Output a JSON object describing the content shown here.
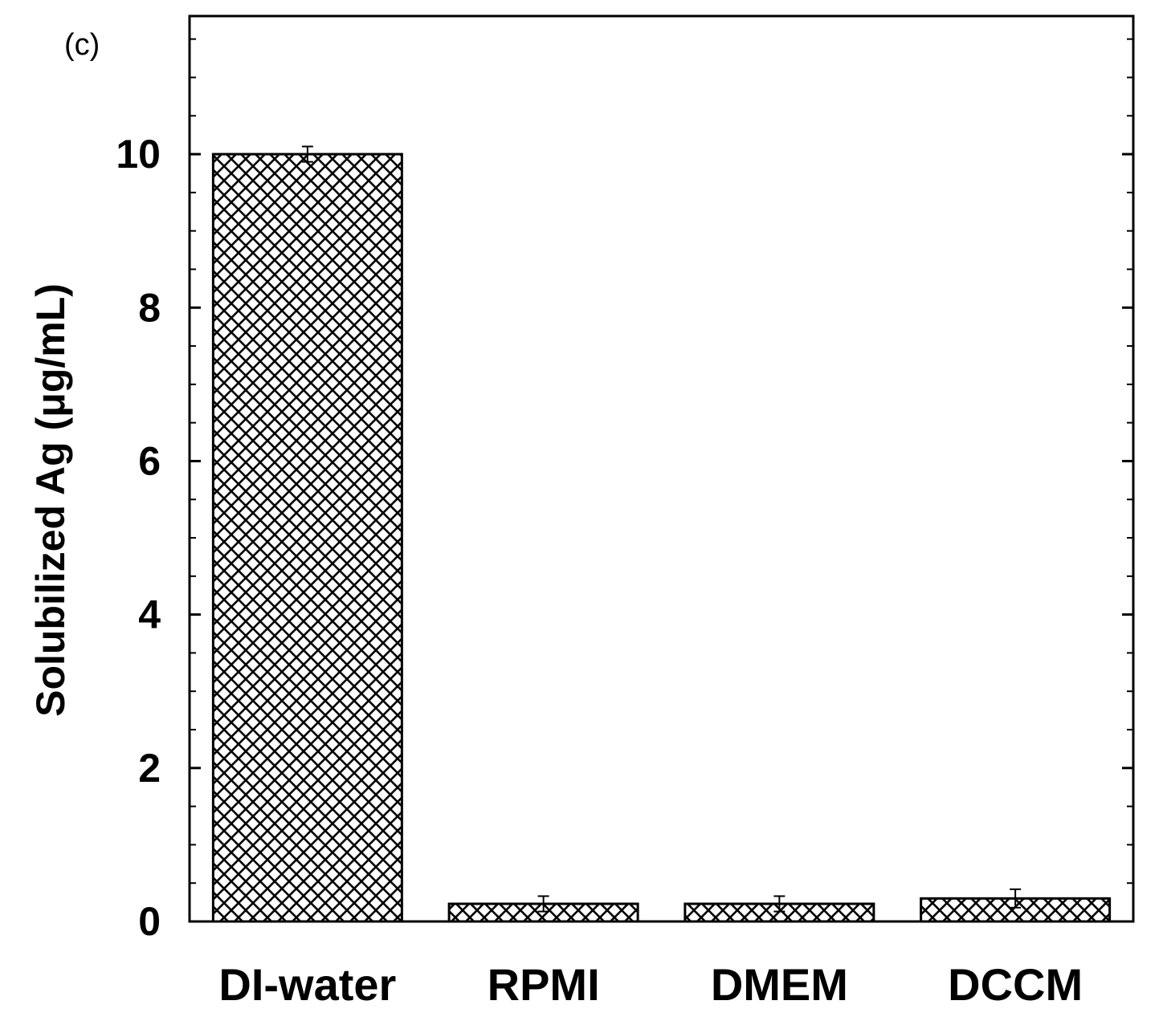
{
  "panel_label": "(c)",
  "chart_data": {
    "type": "bar",
    "categories": [
      "DI-water",
      "RPMI",
      "DMEM",
      "DCCM"
    ],
    "values": [
      10.0,
      0.23,
      0.23,
      0.3
    ],
    "errors": [
      0.1,
      0.1,
      0.1,
      0.12
    ],
    "title": "",
    "xlabel": "",
    "ylabel": "Solubilized Ag (μg/mL)",
    "ylim": [
      0,
      11.8
    ],
    "yticks": [
      "0",
      "2",
      "4",
      "6",
      "8",
      "10"
    ],
    "bar_pattern": "crosshatch",
    "grid": false,
    "legend": "none"
  }
}
